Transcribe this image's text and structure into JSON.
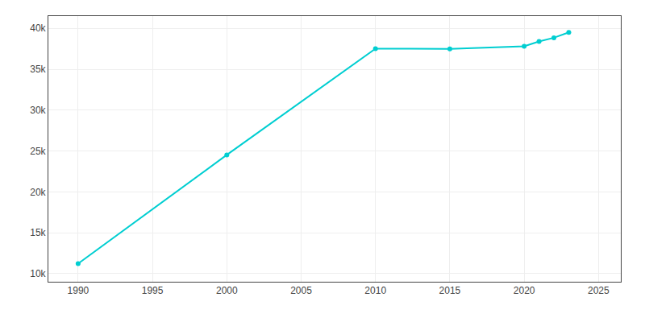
{
  "chart_data": {
    "type": "line",
    "x": [
      1990,
      2000,
      2010,
      2015,
      2020,
      2021,
      2022,
      2023
    ],
    "values": [
      11215,
      24520,
      37520,
      37490,
      37810,
      38400,
      38850,
      39500
    ],
    "color": "#00CED1",
    "marker": "circle",
    "xlim": [
      1988,
      2026.5
    ],
    "ylim": [
      9000,
      41500
    ],
    "xticks": [
      1990,
      1995,
      2000,
      2005,
      2010,
      2015,
      2020,
      2025
    ],
    "yticks": [
      {
        "value": 10000,
        "label": "10k"
      },
      {
        "value": 15000,
        "label": "15k"
      },
      {
        "value": 20000,
        "label": "20k"
      },
      {
        "value": 25000,
        "label": "25k"
      },
      {
        "value": 30000,
        "label": "30k"
      },
      {
        "value": 35000,
        "label": "35k"
      },
      {
        "value": 40000,
        "label": "40k"
      }
    ],
    "grid": true
  }
}
